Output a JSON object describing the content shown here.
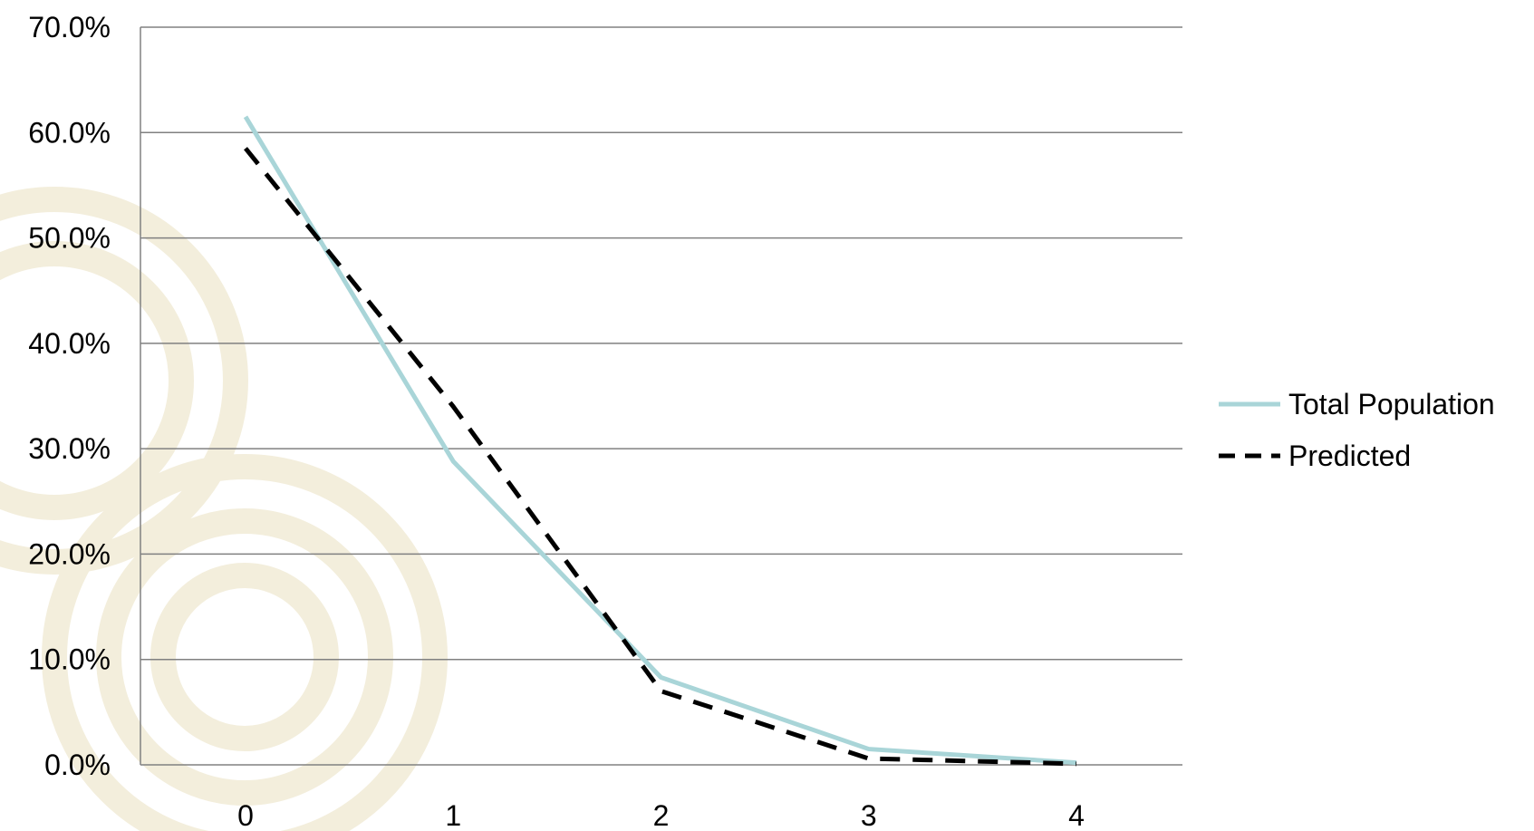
{
  "chart_data": {
    "type": "line",
    "categories": [
      "0",
      "1",
      "2",
      "3",
      "4"
    ],
    "series": [
      {
        "name": "Total Population",
        "values": [
          61.5,
          28.8,
          8.3,
          1.5,
          0.2
        ],
        "color": "#a9d5d8",
        "style": "solid"
      },
      {
        "name": "Predicted",
        "values": [
          58.5,
          34.0,
          7.0,
          0.6,
          0.1
        ],
        "color": "#000000",
        "style": "dashed"
      }
    ],
    "ylim": [
      0,
      70
    ],
    "y_ticks": [
      0,
      10,
      20,
      30,
      40,
      50,
      60,
      70
    ],
    "y_tick_labels": [
      "0.0%",
      "10.0%",
      "20.0%",
      "30.0%",
      "40.0%",
      "50.0%",
      "60.0%",
      "70.0%"
    ],
    "grid": true,
    "legend_position": "right",
    "gridline_color": "#808080",
    "watermark_color": "#f3eedc"
  }
}
